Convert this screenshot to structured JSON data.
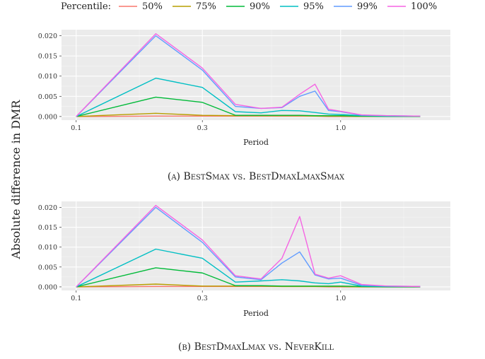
{
  "legend": {
    "title": "Percentile:",
    "entries": [
      {
        "label": "50%",
        "color": "#F8766D"
      },
      {
        "label": "75%",
        "color": "#B79F00"
      },
      {
        "label": "90%",
        "color": "#00BA38"
      },
      {
        "label": "95%",
        "color": "#00BFC4"
      },
      {
        "label": "99%",
        "color": "#619CFF"
      },
      {
        "label": "100%",
        "color": "#F564E3"
      }
    ]
  },
  "shared_ylabel": "Absolute difference in DMR",
  "chart_data": [
    {
      "type": "line",
      "caption": "(a) BestSmax vs. BestDmaxLmaxSmax",
      "xlabel": "Period",
      "x_scale": "log",
      "xlim": [
        0.088,
        2.6
      ],
      "ylim": [
        -0.0009,
        0.0215
      ],
      "x_ticks": [
        0.1,
        0.3,
        1.0
      ],
      "x_tick_labels": [
        "0.1",
        "0.3",
        "1.0"
      ],
      "y_ticks": [
        0,
        0.005,
        0.01,
        0.015,
        0.02
      ],
      "y_tick_labels": [
        "0.000",
        "0.005",
        "0.010",
        "0.015",
        "0.020"
      ],
      "x": [
        0.1,
        0.2,
        0.3,
        0.4,
        0.5,
        0.6,
        0.7,
        0.8,
        0.9,
        1.0,
        1.2,
        1.5,
        2.0
      ],
      "series": [
        {
          "name": "50%",
          "values": [
            0,
            0.0001,
            0.0001,
            0.0001,
            0.0001,
            0.0001,
            0.0001,
            0.0001,
            0,
            0,
            0,
            0,
            0
          ]
        },
        {
          "name": "75%",
          "values": [
            0,
            0.0008,
            0.0003,
            0.0002,
            0.0002,
            0.0002,
            0.0002,
            0.0001,
            0.0001,
            0.0001,
            0,
            0,
            0
          ]
        },
        {
          "name": "90%",
          "values": [
            0,
            0.0048,
            0.0035,
            0.0003,
            0.0003,
            0.0003,
            0.0003,
            0.0002,
            0.0002,
            0.0002,
            0.0001,
            0,
            0
          ]
        },
        {
          "name": "95%",
          "values": [
            0,
            0.0095,
            0.0072,
            0.0012,
            0.0009,
            0.0015,
            0.0014,
            0.001,
            0.0006,
            0.0005,
            0.0002,
            0.0001,
            0.0001
          ]
        },
        {
          "name": "99%",
          "values": [
            0,
            0.02,
            0.0115,
            0.0025,
            0.002,
            0.0022,
            0.005,
            0.0063,
            0.0015,
            0.0012,
            0.0003,
            0.0002,
            0.0001
          ]
        },
        {
          "name": "100%",
          "values": [
            0,
            0.0205,
            0.012,
            0.003,
            0.002,
            0.0023,
            0.0055,
            0.008,
            0.0018,
            0.0013,
            0.0004,
            0.0002,
            0.0001
          ]
        }
      ]
    },
    {
      "type": "line",
      "caption": "(b) BestDmaxLmax vs. NeverKill",
      "xlabel": "Period",
      "x_scale": "log",
      "xlim": [
        0.088,
        2.6
      ],
      "ylim": [
        -0.0009,
        0.0215
      ],
      "x_ticks": [
        0.1,
        0.3,
        1.0
      ],
      "x_tick_labels": [
        "0.1",
        "0.3",
        "1.0"
      ],
      "y_ticks": [
        0,
        0.005,
        0.01,
        0.015,
        0.02
      ],
      "y_tick_labels": [
        "0.000",
        "0.005",
        "0.010",
        "0.015",
        "0.020"
      ],
      "x": [
        0.1,
        0.2,
        0.3,
        0.4,
        0.5,
        0.6,
        0.7,
        0.8,
        0.9,
        1.0,
        1.2,
        1.5,
        2.0
      ],
      "series": [
        {
          "name": "50%",
          "values": [
            0,
            0.0001,
            0.0001,
            0.0001,
            0.0001,
            0.0001,
            0.0001,
            0.0001,
            0,
            0,
            0,
            0,
            0
          ]
        },
        {
          "name": "75%",
          "values": [
            0,
            0.0007,
            0.0002,
            0.0002,
            0.0002,
            0.0001,
            0.0001,
            0.0001,
            0.0001,
            0.0001,
            0,
            0,
            0
          ]
        },
        {
          "name": "90%",
          "values": [
            0,
            0.0048,
            0.0035,
            0.0003,
            0.0003,
            0.0002,
            0.0002,
            0.0002,
            0.0002,
            0.0002,
            0.0001,
            0,
            0
          ]
        },
        {
          "name": "95%",
          "values": [
            0,
            0.0095,
            0.0072,
            0.0012,
            0.0015,
            0.0018,
            0.0015,
            0.001,
            0.0008,
            0.0012,
            0.0002,
            0.0001,
            0.0001
          ]
        },
        {
          "name": "99%",
          "values": [
            0,
            0.02,
            0.0112,
            0.0025,
            0.0018,
            0.006,
            0.0088,
            0.003,
            0.002,
            0.0022,
            0.0004,
            0.0002,
            0.0001
          ]
        },
        {
          "name": "100%",
          "values": [
            0,
            0.0205,
            0.0118,
            0.0028,
            0.002,
            0.0072,
            0.0177,
            0.0032,
            0.0022,
            0.0028,
            0.0006,
            0.0002,
            0.0001
          ]
        }
      ]
    }
  ]
}
